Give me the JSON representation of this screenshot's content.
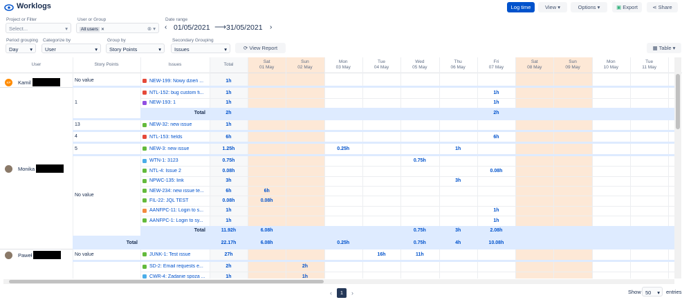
{
  "header": {
    "title": "Worklogs",
    "buttons": {
      "log_time": "Log time",
      "view": "View",
      "options": "Options",
      "export": "Export",
      "share": "Share"
    }
  },
  "filters": {
    "project_label": "Project or Filter",
    "project_placeholder": "Select...",
    "user_label": "User or Group",
    "user_chip": "All users",
    "date_label": "Date range",
    "date_from": "01/05/2021",
    "date_to": "31/05/2021",
    "period_label": "Period grouping",
    "period": "Day",
    "categorize_label": "Categorize by",
    "categorize": "User",
    "group_label": "Group by",
    "group": "Story Points",
    "secondary_label": "Secondary Grouping",
    "secondary": "Issues",
    "view_report": "View Report",
    "table": "Table"
  },
  "table": {
    "columns": {
      "user": "User",
      "story_points": "Story Points",
      "issues": "Issues",
      "total": "Total"
    },
    "days": [
      {
        "weekday": "Sat",
        "date": "01 May",
        "weekend": true
      },
      {
        "weekday": "Sun",
        "date": "02 May",
        "weekend": true
      },
      {
        "weekday": "Mon",
        "date": "03 May",
        "weekend": false
      },
      {
        "weekday": "Tue",
        "date": "04 May",
        "weekend": false
      },
      {
        "weekday": "Wed",
        "date": "05 May",
        "weekend": false
      },
      {
        "weekday": "Thu",
        "date": "06 May",
        "weekend": false
      },
      {
        "weekday": "Fri",
        "date": "07 May",
        "weekend": false
      },
      {
        "weekday": "Sat",
        "date": "08 May",
        "weekend": true
      },
      {
        "weekday": "Sun",
        "date": "09 May",
        "weekend": true
      },
      {
        "weekday": "Mon",
        "date": "10 May",
        "weekend": false
      },
      {
        "weekday": "Tue",
        "date": "11 May",
        "weekend": false
      }
    ],
    "total_label": "Total",
    "users": [
      {
        "name": "Kamil",
        "avatar": "KP",
        "groups": [
          {
            "story_points": "No value",
            "issues": [
              {
                "key": "NEW-199: Nowy dzień ...",
                "icon": "#e5493a",
                "total": "1h",
                "days": [
                  null,
                  null,
                  null,
                  null,
                  null,
                  null,
                  null,
                  null,
                  null,
                  null,
                  null
                ]
              }
            ]
          }
        ]
      },
      {
        "name": "Monika",
        "groups": [
          {
            "story_points": "1",
            "issues": [
              {
                "key": "NTL-152: bug custom fi...",
                "icon": "#e5493a",
                "total": "1h",
                "days": [
                  null,
                  null,
                  null,
                  null,
                  null,
                  null,
                  "1h",
                  null,
                  null,
                  null,
                  null
                ]
              },
              {
                "key": "NEW-193: 1",
                "icon": "#904ee2",
                "total": "1h",
                "days": [
                  null,
                  null,
                  null,
                  null,
                  null,
                  null,
                  "1h",
                  null,
                  null,
                  null,
                  null
                ]
              }
            ],
            "subtotal": {
              "total": "2h",
              "days": [
                null,
                null,
                null,
                null,
                null,
                null,
                "2h",
                null,
                null,
                null,
                null
              ]
            }
          },
          {
            "story_points": "13",
            "issues": [
              {
                "key": "NEW-32: new issue",
                "icon": "#63ba3c",
                "total": "1h",
                "days": [
                  null,
                  null,
                  null,
                  null,
                  null,
                  null,
                  null,
                  null,
                  null,
                  null,
                  null
                ]
              }
            ]
          },
          {
            "story_points": "4",
            "issues": [
              {
                "key": "NTL-153: fields",
                "icon": "#e5493a",
                "total": "6h",
                "days": [
                  null,
                  null,
                  null,
                  null,
                  null,
                  null,
                  "6h",
                  null,
                  null,
                  null,
                  null
                ]
              }
            ]
          },
          {
            "story_points": "5",
            "issues": [
              {
                "key": "NEW-3: new issue",
                "icon": "#63ba3c",
                "total": "1.25h",
                "days": [
                  null,
                  null,
                  "0.25h",
                  null,
                  null,
                  "1h",
                  null,
                  null,
                  null,
                  null,
                  null
                ]
              }
            ]
          },
          {
            "story_points": "No value",
            "issues": [
              {
                "key": "WTN-1: 3123",
                "icon": "#4bade8",
                "total": "0.75h",
                "days": [
                  null,
                  null,
                  null,
                  null,
                  "0.75h",
                  null,
                  null,
                  null,
                  null,
                  null,
                  null
                ]
              },
              {
                "key": "NTL-4: Issue 2",
                "icon": "#63ba3c",
                "total": "0.08h",
                "days": [
                  null,
                  null,
                  null,
                  null,
                  null,
                  null,
                  "0.08h",
                  null,
                  null,
                  null,
                  null
                ]
              },
              {
                "key": "NPWC-135: link",
                "icon": "#63ba3c",
                "total": "3h",
                "days": [
                  null,
                  null,
                  null,
                  null,
                  null,
                  "3h",
                  null,
                  null,
                  null,
                  null,
                  null
                ]
              },
              {
                "key": "NEW-234: new issue te...",
                "icon": "#63ba3c",
                "total": "6h",
                "days": [
                  "6h",
                  null,
                  null,
                  null,
                  null,
                  null,
                  null,
                  null,
                  null,
                  null,
                  null
                ]
              },
              {
                "key": "FIL-22: JQL TEST",
                "icon": "#63ba3c",
                "total": "0.08h",
                "days": [
                  "0.08h",
                  null,
                  null,
                  null,
                  null,
                  null,
                  null,
                  null,
                  null,
                  null,
                  null
                ]
              },
              {
                "key": "AANFPC-11: Login to s...",
                "icon": "#f38a3f",
                "total": "1h",
                "days": [
                  null,
                  null,
                  null,
                  null,
                  null,
                  null,
                  "1h",
                  null,
                  null,
                  null,
                  null
                ]
              },
              {
                "key": "AANFPC-1: Login to sy...",
                "icon": "#63ba3c",
                "total": "1h",
                "days": [
                  null,
                  null,
                  null,
                  null,
                  null,
                  null,
                  "1h",
                  null,
                  null,
                  null,
                  null
                ]
              }
            ],
            "subtotal": {
              "total": "11.92h",
              "days": [
                "6.08h",
                null,
                null,
                null,
                "0.75h",
                "3h",
                "2.08h",
                null,
                null,
                null,
                null
              ]
            }
          }
        ],
        "total": {
          "total": "22.17h",
          "days": [
            "6.08h",
            null,
            "0.25h",
            null,
            "0.75h",
            "4h",
            "10.08h",
            null,
            null,
            null,
            null
          ]
        }
      },
      {
        "name": "Paweł",
        "groups": [
          {
            "story_points": "No value",
            "issues": [
              {
                "key": "JUNK-1: Test issue",
                "icon": "#63ba3c",
                "total": "27h",
                "days": [
                  null,
                  null,
                  null,
                  "16h",
                  "11h",
                  null,
                  null,
                  null,
                  null,
                  null,
                  null
                ]
              }
            ]
          },
          {
            "issues": [
              {
                "key": "SD-2: Email requests e...",
                "icon": "#63ba3c",
                "total": "2h",
                "days": [
                  null,
                  "2h",
                  null,
                  null,
                  null,
                  null,
                  null,
                  null,
                  null,
                  null,
                  null
                ]
              },
              {
                "key": "CWR-4: Zadanie spoza ...",
                "icon": "#4bade8",
                "total": "1h",
                "days": [
                  null,
                  "1h",
                  null,
                  null,
                  null,
                  null,
                  null,
                  null,
                  null,
                  null,
                  null
                ]
              }
            ]
          }
        ]
      }
    ]
  },
  "pagination": {
    "page": "1",
    "show": "Show",
    "entries_count": "50",
    "entries": "entries"
  }
}
